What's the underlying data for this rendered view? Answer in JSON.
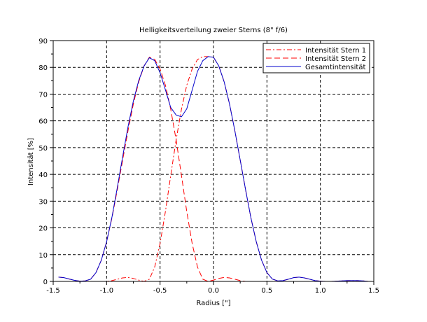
{
  "chart_data": {
    "type": "line",
    "title": "Helligkeitsverteilung zweier Sterns (8\" f/6)",
    "xlabel": "Radius [\"]",
    "ylabel": "Intensität [%]",
    "xlim": [
      -1.5,
      1.5
    ],
    "ylim": [
      0,
      90
    ],
    "xticks": [
      -1.5,
      -1.0,
      -0.5,
      0,
      0.5,
      1.0,
      1.5
    ],
    "xtick_labels": [
      "-1.5",
      "-1.0",
      "-0.5",
      "0.0",
      "0.5",
      "1.0",
      "1.5"
    ],
    "yticks": [
      0,
      10,
      20,
      30,
      40,
      50,
      60,
      70,
      80,
      90
    ],
    "ytick_labels": [
      "0",
      "10",
      "20",
      "30",
      "40",
      "50",
      "60",
      "70",
      "80",
      "90"
    ],
    "grid": true,
    "legend_position": "top-right",
    "series": [
      {
        "name": "Intensität Stern 1",
        "color": "#ff0000",
        "dash": "dash-dot",
        "x": [
          -1.45,
          -1.4,
          -1.35,
          -1.3,
          -1.25,
          -1.2,
          -1.15,
          -1.1,
          -1.05,
          -1.0,
          -0.95,
          -0.9,
          -0.85,
          -0.8,
          -0.75,
          -0.7,
          -0.65,
          -0.6,
          -0.55,
          -0.5,
          -0.45,
          -0.4,
          -0.35,
          -0.3,
          -0.25,
          -0.2,
          -0.15,
          -0.1,
          -0.05,
          0.0,
          0.05,
          0.1,
          0.15,
          0.2,
          0.25,
          0.3,
          0.35,
          0.4,
          0.45,
          0.5,
          0.55,
          0.6,
          0.65,
          0.7,
          0.75,
          0.8,
          0.85,
          0.9,
          0.95,
          1.0,
          1.05,
          1.1,
          1.15,
          1.2,
          1.25,
          1.3,
          1.35,
          1.4,
          1.45
        ],
        "y": [
          0.0,
          0.0,
          0.0,
          0.0,
          0.0,
          0.0,
          0.0,
          0.0,
          0.0,
          0.0,
          0.3,
          0.8,
          1.3,
          1.5,
          1.1,
          0.5,
          0.0,
          0.8,
          5.4,
          14.2,
          26.1,
          39.6,
          52.9,
          64.3,
          73.3,
          79.4,
          82.9,
          84.0,
          84.0,
          83.8,
          80.5,
          74.5,
          66.3,
          56.3,
          45.3,
          34.3,
          23.8,
          14.8,
          7.9,
          3.3,
          0.9,
          0.2,
          0.3,
          0.8,
          1.4,
          1.6,
          1.3,
          0.8,
          0.3,
          0.1,
          0.0,
          0.0,
          0.1,
          0.2,
          0.3,
          0.3,
          0.3,
          0.2,
          0.0
        ]
      },
      {
        "name": "Intensität Stern 2",
        "color": "#ff0000",
        "dash": "dash",
        "x": [
          -1.45,
          -1.4,
          -1.35,
          -1.3,
          -1.25,
          -1.2,
          -1.15,
          -1.1,
          -1.05,
          -1.0,
          -0.95,
          -0.9,
          -0.85,
          -0.8,
          -0.75,
          -0.7,
          -0.65,
          -0.6,
          -0.55,
          -0.5,
          -0.45,
          -0.4,
          -0.35,
          -0.3,
          -0.25,
          -0.2,
          -0.15,
          -0.1,
          -0.05,
          0.0,
          0.05,
          0.1,
          0.15,
          0.2,
          0.25,
          0.3,
          0.35,
          0.4,
          0.45,
          0.5,
          0.55,
          0.6,
          0.65,
          0.7,
          0.75,
          0.8,
          0.85,
          0.9,
          0.95,
          1.0,
          1.05,
          1.1,
          1.15,
          1.2,
          1.25,
          1.3,
          1.35,
          1.4,
          1.45
        ],
        "y": [
          1.6,
          1.4,
          0.9,
          0.4,
          0.1,
          0.2,
          0.8,
          3.3,
          7.9,
          14.8,
          23.8,
          34.3,
          45.3,
          56.3,
          66.3,
          74.5,
          80.5,
          83.8,
          83.0,
          79.4,
          73.3,
          64.3,
          52.9,
          39.6,
          26.1,
          14.2,
          5.4,
          0.8,
          0.0,
          0.5,
          1.1,
          1.5,
          1.3,
          0.8,
          0.3,
          0.0,
          0.0,
          0.0,
          0.0,
          0.0,
          0.0,
          0.0,
          0.0,
          0.0,
          0.0,
          0.0,
          0.0,
          0.0,
          0.0,
          0.0,
          0.0,
          0.0,
          0.0,
          0.0,
          0.0,
          0.0,
          0.0,
          0.0,
          0.0
        ]
      },
      {
        "name": "Gesamtintensität",
        "color": "#0000cc",
        "dash": "solid",
        "x": [
          -1.45,
          -1.4,
          -1.35,
          -1.3,
          -1.25,
          -1.2,
          -1.15,
          -1.1,
          -1.05,
          -1.0,
          -0.95,
          -0.9,
          -0.85,
          -0.8,
          -0.75,
          -0.7,
          -0.65,
          -0.6,
          -0.55,
          -0.5,
          -0.45,
          -0.4,
          -0.35,
          -0.3,
          -0.25,
          -0.2,
          -0.15,
          -0.1,
          -0.05,
          0.0,
          0.05,
          0.1,
          0.15,
          0.2,
          0.25,
          0.3,
          0.35,
          0.4,
          0.45,
          0.5,
          0.55,
          0.6,
          0.65,
          0.7,
          0.75,
          0.8,
          0.85,
          0.9,
          0.95,
          1.0,
          1.05,
          1.1,
          1.15,
          1.2,
          1.25,
          1.3,
          1.35,
          1.4,
          1.45
        ],
        "y": [
          1.6,
          1.4,
          0.9,
          0.4,
          0.1,
          0.2,
          0.8,
          3.3,
          7.9,
          14.8,
          24.1,
          35.1,
          46.6,
          57.8,
          67.4,
          75.0,
          80.5,
          83.6,
          82.5,
          78.0,
          71.6,
          65.0,
          62.2,
          61.5,
          64.5,
          71.5,
          78.5,
          82.5,
          84.0,
          83.8,
          80.5,
          74.5,
          66.3,
          56.3,
          45.3,
          34.3,
          23.8,
          14.8,
          7.9,
          3.3,
          0.9,
          0.2,
          0.3,
          0.8,
          1.4,
          1.6,
          1.3,
          0.8,
          0.3,
          0.1,
          0.0,
          0.0,
          0.1,
          0.2,
          0.3,
          0.3,
          0.3,
          0.2,
          0.0
        ]
      }
    ]
  }
}
